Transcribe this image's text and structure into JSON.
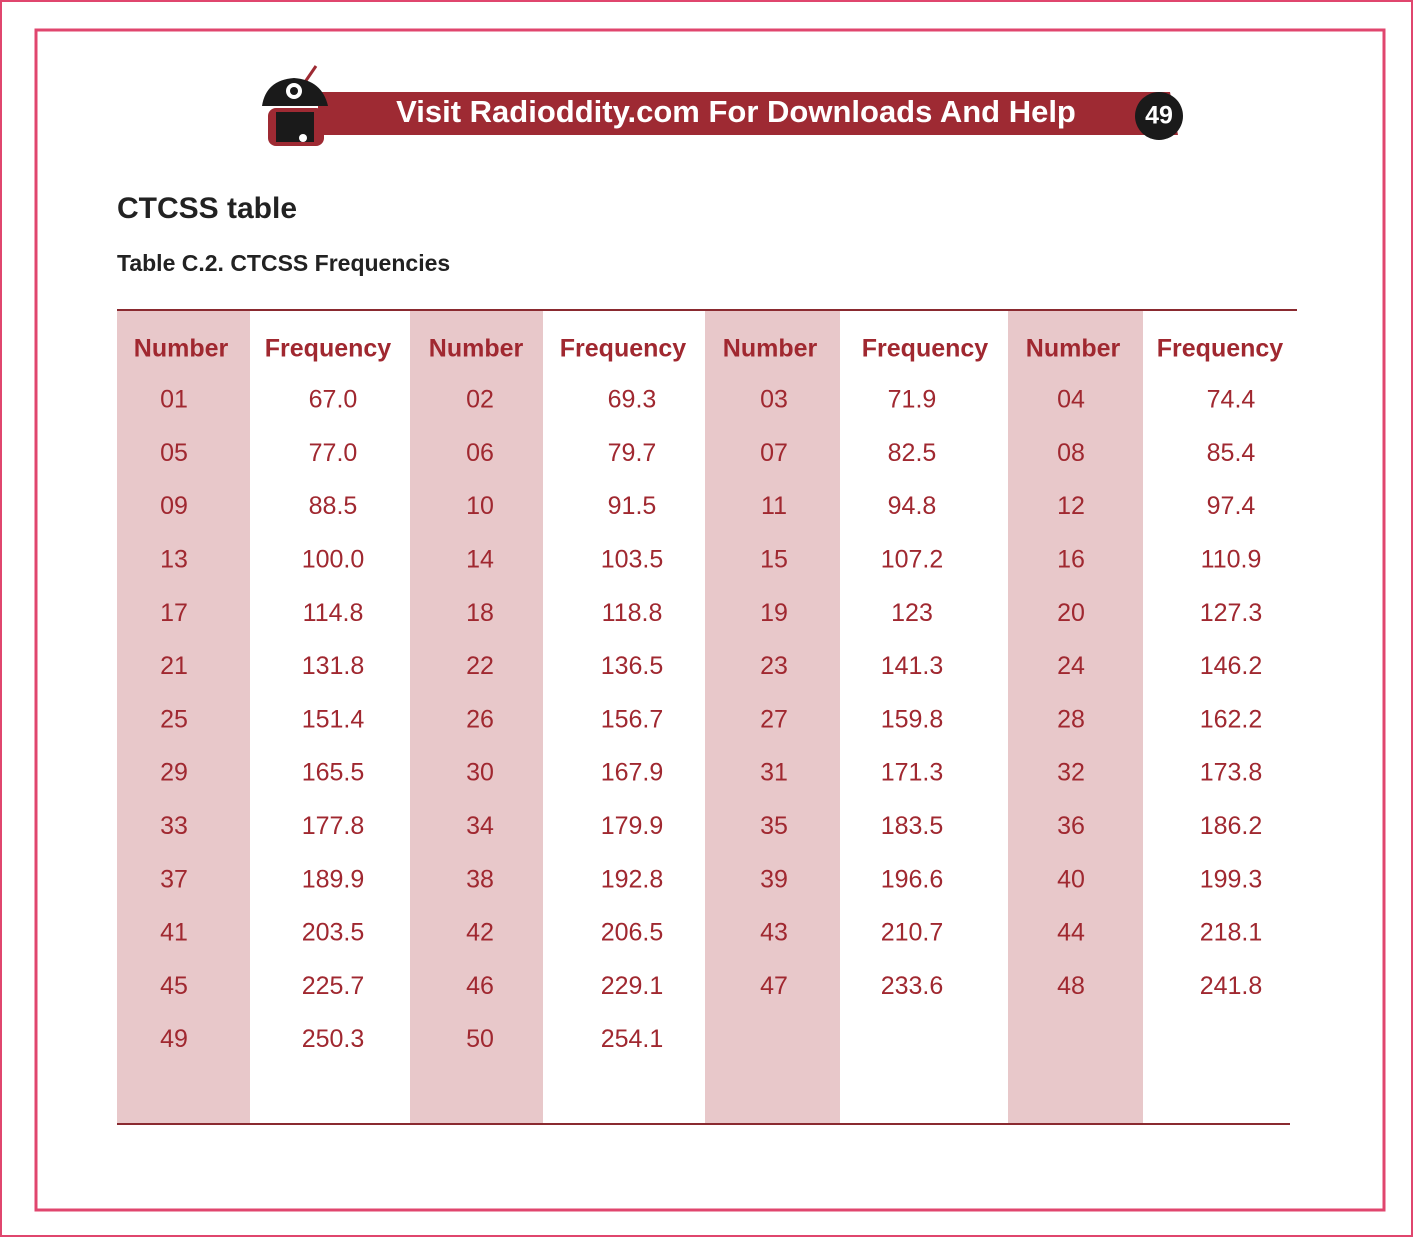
{
  "header": {
    "banner": "Visit Radioddity.com For Downloads And Help",
    "page_number": "49"
  },
  "title": "CTCSS table",
  "table": {
    "caption": "Table C.2. CTCSS Frequencies",
    "columns": [
      "Number",
      "Frequency",
      "Number",
      "Frequency",
      "Number",
      "Frequency",
      "Number",
      "Frequency"
    ],
    "rows": [
      [
        "01",
        "67.0",
        "02",
        "69.3",
        "03",
        "71.9",
        "04",
        "74.4"
      ],
      [
        "05",
        "77.0",
        "06",
        "79.7",
        "07",
        "82.5",
        "08",
        "85.4"
      ],
      [
        "09",
        "88.5",
        "10",
        "91.5",
        "11",
        "94.8",
        "12",
        "97.4"
      ],
      [
        "13",
        "100.0",
        "14",
        "103.5",
        "15",
        "107.2",
        "16",
        "110.9"
      ],
      [
        "17",
        "114.8",
        "18",
        "118.8",
        "19",
        "123",
        "20",
        "127.3"
      ],
      [
        "21",
        "131.8",
        "22",
        "136.5",
        "23",
        "141.3",
        "24",
        "146.2"
      ],
      [
        "25",
        "151.4",
        "26",
        "156.7",
        "27",
        "159.8",
        "28",
        "162.2"
      ],
      [
        "29",
        "165.5",
        "30",
        "167.9",
        "31",
        "171.3",
        "32",
        "173.8"
      ],
      [
        "33",
        "177.8",
        "34",
        "179.9",
        "35",
        "183.5",
        "36",
        "186.2"
      ],
      [
        "37",
        "189.9",
        "38",
        "192.8",
        "39",
        "196.6",
        "40",
        "199.3"
      ],
      [
        "41",
        "203.5",
        "42",
        "206.5",
        "43",
        "210.7",
        "44",
        "218.1"
      ],
      [
        "45",
        "225.7",
        "46",
        "229.1",
        "47",
        "233.6",
        "48",
        "241.8"
      ],
      [
        "49",
        "250.3",
        "50",
        "254.1"
      ]
    ]
  }
}
